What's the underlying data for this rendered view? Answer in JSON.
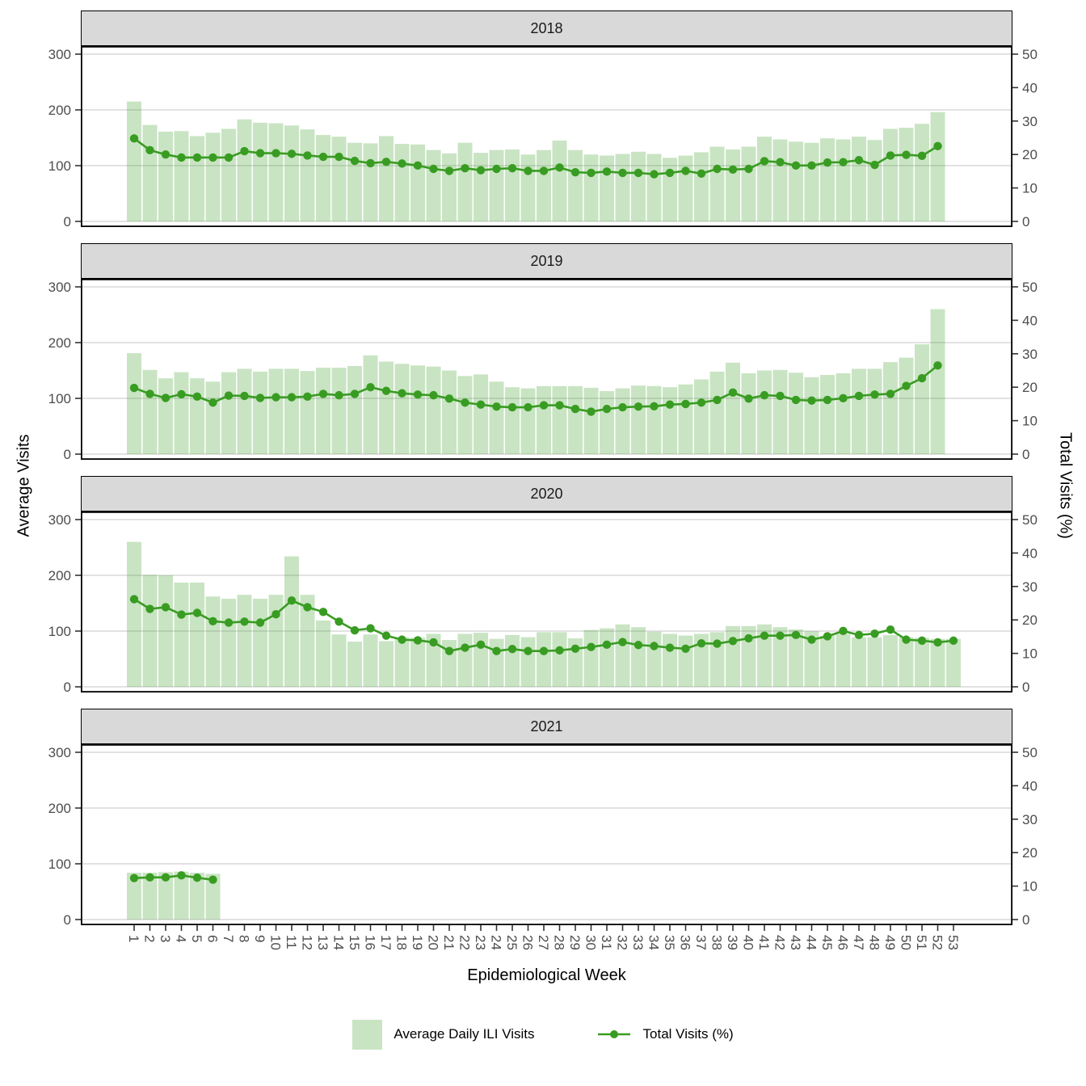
{
  "figure": {
    "y_left_title": "Average Visits",
    "y_right_title": "Total Visits (%)",
    "x_title": "Epidemiological Week",
    "legend": [
      {
        "symbol": "bar-swatch",
        "label": "Average Daily ILI Visits"
      },
      {
        "symbol": "line-point",
        "label": "Total Visits (%)"
      }
    ],
    "colors": {
      "bar_fill": "rgba(57,156,34,0.27)",
      "line": "#399c22",
      "strip_bg": "#d9d9d9",
      "gridline": "#d9d9d9",
      "tick_label": "#4d4d4d",
      "panel_border": "#000000"
    }
  },
  "axes": {
    "left_ticks": [
      0,
      100,
      200,
      300
    ],
    "right_ticks": [
      0,
      10,
      20,
      30,
      40,
      50
    ],
    "week_labels": [
      1,
      2,
      3,
      4,
      5,
      6,
      7,
      8,
      9,
      10,
      11,
      12,
      13,
      14,
      15,
      16,
      17,
      18,
      19,
      20,
      21,
      22,
      23,
      24,
      25,
      26,
      27,
      28,
      29,
      30,
      31,
      32,
      33,
      34,
      35,
      36,
      37,
      38,
      39,
      40,
      41,
      42,
      43,
      44,
      45,
      46,
      47,
      48,
      49,
      50,
      51,
      52,
      53
    ]
  },
  "chart_data": [
    {
      "type": "bar",
      "facet": "2018",
      "bar_series": "Average Daily ILI Visits",
      "line_series": "Total Visits (%)",
      "ylim_left": [
        0,
        310
      ],
      "ylim_right": [
        0,
        51.7
      ],
      "weeks": [
        1,
        2,
        3,
        4,
        5,
        6,
        7,
        8,
        9,
        10,
        11,
        12,
        13,
        14,
        15,
        16,
        17,
        18,
        19,
        20,
        21,
        22,
        23,
        24,
        25,
        26,
        27,
        28,
        29,
        30,
        31,
        32,
        33,
        34,
        35,
        36,
        37,
        38,
        39,
        40,
        41,
        42,
        43,
        44,
        45,
        46,
        47,
        48,
        49,
        50,
        51,
        52
      ],
      "avg_daily_ili_visits": [
        215,
        173,
        161,
        162,
        153,
        159,
        166,
        183,
        177,
        176,
        172,
        165,
        155,
        152,
        141,
        140,
        153,
        139,
        138,
        128,
        122,
        141,
        123,
        128,
        129,
        120,
        128,
        145,
        128,
        120,
        118,
        121,
        125,
        121,
        114,
        118,
        124,
        134,
        129,
        134,
        152,
        147,
        143,
        141,
        149,
        147,
        152,
        146,
        166,
        168,
        175,
        196
      ],
      "total_visits_pct": [
        24.8,
        21.3,
        20.0,
        19.1,
        19.1,
        19.1,
        19.1,
        21.0,
        20.4,
        20.4,
        20.2,
        19.7,
        19.3,
        19.3,
        18.1,
        17.4,
        17.8,
        17.3,
        16.7,
        15.7,
        15.1,
        15.9,
        15.3,
        15.7,
        15.9,
        15.1,
        15.1,
        16.1,
        14.7,
        14.5,
        14.9,
        14.5,
        14.5,
        14.1,
        14.5,
        15.1,
        14.3,
        15.7,
        15.5,
        15.7,
        18.0,
        17.7,
        16.7,
        16.7,
        17.6,
        17.7,
        18.3,
        16.9,
        19.7,
        19.9,
        19.6,
        22.5
      ]
    },
    {
      "type": "bar",
      "facet": "2019",
      "bar_series": "Average Daily ILI Visits",
      "line_series": "Total Visits (%)",
      "ylim_left": [
        0,
        310
      ],
      "ylim_right": [
        0,
        51.7
      ],
      "weeks": [
        1,
        2,
        3,
        4,
        5,
        6,
        7,
        8,
        9,
        10,
        11,
        12,
        13,
        14,
        15,
        16,
        17,
        18,
        19,
        20,
        21,
        22,
        23,
        24,
        25,
        26,
        27,
        28,
        29,
        30,
        31,
        32,
        33,
        34,
        35,
        36,
        37,
        38,
        39,
        40,
        41,
        42,
        43,
        44,
        45,
        46,
        47,
        48,
        49,
        50,
        51,
        52
      ],
      "avg_daily_ili_visits": [
        181,
        151,
        136,
        147,
        136,
        130,
        147,
        153,
        148,
        153,
        153,
        149,
        155,
        155,
        158,
        177,
        166,
        162,
        159,
        157,
        150,
        140,
        143,
        130,
        120,
        118,
        122,
        122,
        122,
        119,
        113,
        118,
        123,
        122,
        120,
        125,
        134,
        148,
        164,
        145,
        150,
        151,
        146,
        138,
        142,
        145,
        153,
        153,
        165,
        173,
        197,
        260
      ],
      "total_visits_pct": [
        19.8,
        18.0,
        16.8,
        17.9,
        17.2,
        15.4,
        17.5,
        17.4,
        16.8,
        17.0,
        17.0,
        17.2,
        18.0,
        17.6,
        18.0,
        20.0,
        18.9,
        18.2,
        17.8,
        17.6,
        16.6,
        15.4,
        14.8,
        14.2,
        14.0,
        14.0,
        14.6,
        14.6,
        13.5,
        12.7,
        13.5,
        14.0,
        14.2,
        14.3,
        14.8,
        15.0,
        15.4,
        16.2,
        18.4,
        16.6,
        17.6,
        17.4,
        16.2,
        16.0,
        16.2,
        16.7,
        17.4,
        17.8,
        18.0,
        20.4,
        22.7,
        26.5
      ]
    },
    {
      "type": "bar",
      "facet": "2020",
      "bar_series": "Average Daily ILI Visits",
      "line_series": "Total Visits (%)",
      "ylim_left": [
        0,
        310
      ],
      "ylim_right": [
        0,
        51.7
      ],
      "weeks": [
        1,
        2,
        3,
        4,
        5,
        6,
        7,
        8,
        9,
        10,
        11,
        12,
        13,
        14,
        15,
        16,
        17,
        18,
        19,
        20,
        21,
        22,
        23,
        24,
        25,
        26,
        27,
        28,
        29,
        30,
        31,
        32,
        33,
        34,
        35,
        36,
        37,
        38,
        39,
        40,
        41,
        42,
        43,
        44,
        45,
        46,
        47,
        48,
        49,
        50,
        51,
        52,
        53
      ],
      "avg_daily_ili_visits": [
        260,
        201,
        200,
        187,
        187,
        162,
        158,
        165,
        158,
        165,
        234,
        165,
        119,
        94,
        81,
        94,
        82,
        89,
        88,
        95,
        84,
        95,
        97,
        86,
        93,
        89,
        98,
        98,
        87,
        102,
        105,
        112,
        107,
        99,
        95,
        92,
        95,
        98,
        109,
        109,
        112,
        107,
        103,
        100,
        92,
        95,
        89,
        89,
        93,
        89,
        88,
        86,
        86
      ],
      "total_visits_pct": [
        26.2,
        23.3,
        23.8,
        21.6,
        22.1,
        19.6,
        19.2,
        19.5,
        19.2,
        21.7,
        25.8,
        23.8,
        22.4,
        19.5,
        16.9,
        17.5,
        15.3,
        14.1,
        13.9,
        13.3,
        10.7,
        11.7,
        12.6,
        10.7,
        11.3,
        10.7,
        10.7,
        10.9,
        11.4,
        11.9,
        12.6,
        13.4,
        12.5,
        12.2,
        11.7,
        11.4,
        13.0,
        12.9,
        13.7,
        14.5,
        15.3,
        15.3,
        15.5,
        14.1,
        15.1,
        16.7,
        15.5,
        15.9,
        17.1,
        14.1,
        13.8,
        13.3,
        13.8
      ]
    },
    {
      "type": "bar",
      "facet": "2021",
      "bar_series": "Average Daily ILI Visits",
      "line_series": "Total Visits (%)",
      "ylim_left": [
        0,
        310
      ],
      "ylim_right": [
        0,
        51.7
      ],
      "weeks": [
        1,
        2,
        3,
        4,
        5,
        6
      ],
      "avg_daily_ili_visits": [
        84,
        84,
        85,
        86,
        84,
        82
      ],
      "total_visits_pct": [
        12.4,
        12.6,
        12.6,
        13.2,
        12.5,
        11.9
      ]
    }
  ]
}
